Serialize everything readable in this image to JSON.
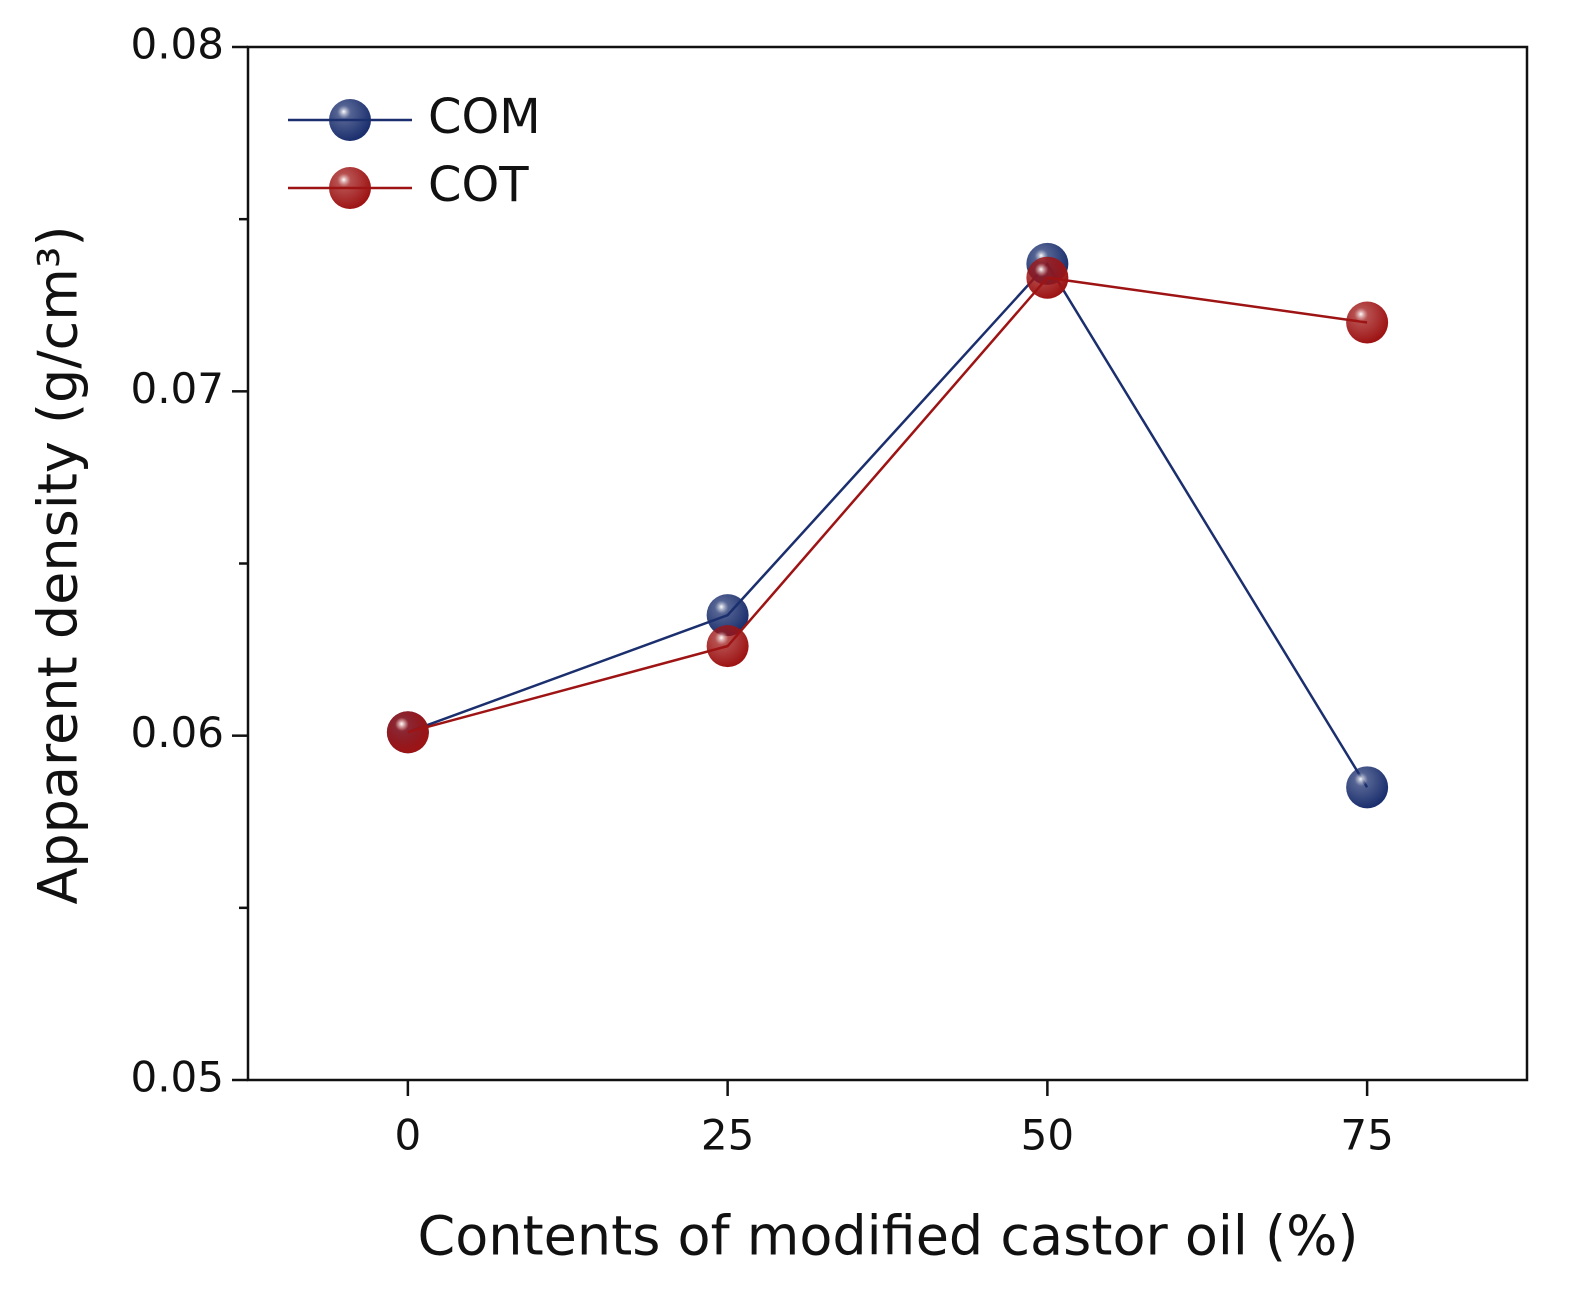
{
  "chart_data": {
    "type": "line",
    "xlabel": "Contents of modified castor oil (%)",
    "ylabel": "Apparent density (g/cm³)",
    "x": [
      0,
      25,
      50,
      75
    ],
    "series": [
      {
        "name": "COM",
        "color": "#1b2f6e",
        "values": [
          0.0601,
          0.0635,
          0.0737,
          0.0585
        ]
      },
      {
        "name": "COT",
        "color": "#9e1414",
        "values": [
          0.0601,
          0.0626,
          0.0733,
          0.072
        ]
      }
    ],
    "xlim": [
      -12.5,
      87.5
    ],
    "xticks": [
      0,
      25,
      50,
      75
    ],
    "ylim": [
      0.05,
      0.08
    ],
    "yticks": [
      0.05,
      0.06,
      0.07,
      0.08
    ],
    "yminorticks": [
      0.055,
      0.065,
      0.075
    ],
    "legend": "upper-left",
    "grid": false
  }
}
